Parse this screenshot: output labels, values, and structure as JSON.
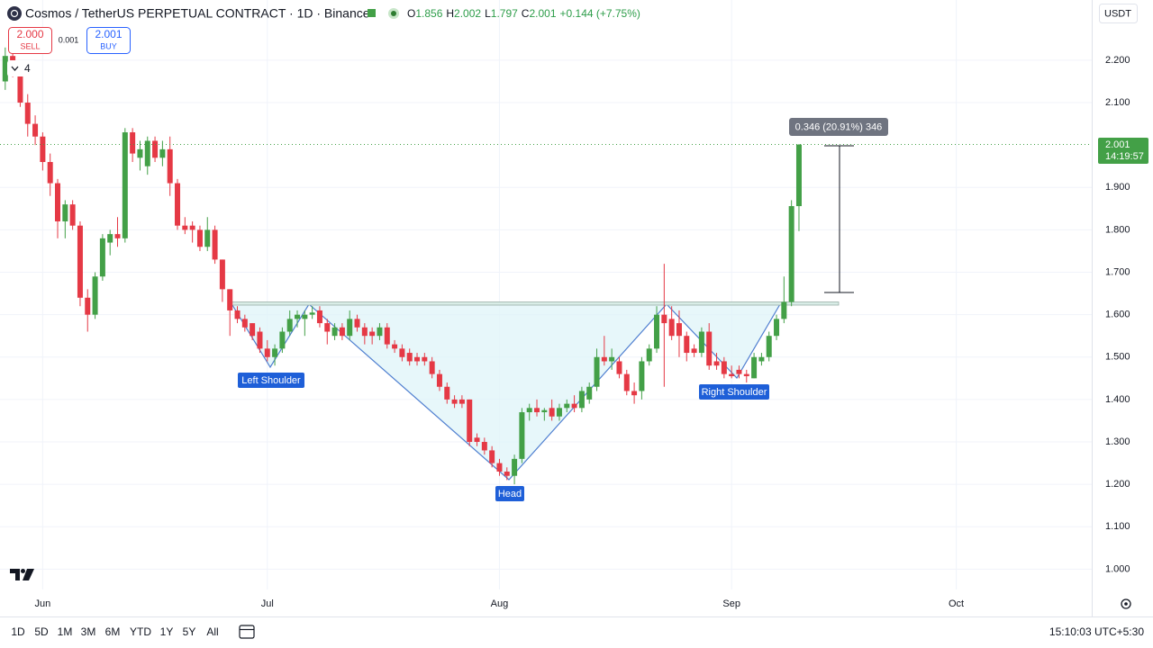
{
  "header": {
    "symbol": "Cosmos / TetherUS PERPETUAL CONTRACT · 1D · Binance",
    "open_label": "O",
    "high_label": "H",
    "low_label": "L",
    "close_label": "C",
    "change": "+0.144 (+7.75%)"
  },
  "order": {
    "sell_price": "2.000",
    "sell_label": "SELL",
    "spread": "0.001",
    "buy_price": "2.001",
    "buy_label": "BUY"
  },
  "indicators_count": "4",
  "currency": "USDT",
  "chart_data": {
    "type": "candlestick",
    "up_color": "#43a047",
    "down_color": "#e53945",
    "grid": true,
    "open": [
      2.15,
      2.21,
      2.17,
      2.1,
      2.05,
      2.02,
      1.96,
      1.91,
      1.82,
      1.86,
      1.81,
      1.64,
      1.6,
      1.69,
      1.77,
      1.79,
      1.78,
      2.03,
      1.97,
      1.95,
      2.01,
      1.97,
      1.99,
      1.91,
      1.81,
      1.81,
      1.8,
      1.76,
      1.8,
      1.73,
      1.66,
      1.61,
      1.59,
      1.58,
      1.56,
      1.52,
      1.5,
      1.52,
      1.56,
      1.59,
      1.59,
      1.6,
      1.61,
      1.58,
      1.55,
      1.57,
      1.55,
      1.59,
      1.57,
      1.56,
      1.55,
      1.57,
      1.53,
      1.52,
      1.51,
      1.5,
      1.5,
      1.49,
      1.46,
      1.43,
      1.4,
      1.4,
      1.4,
      1.31,
      1.3,
      1.28,
      1.25,
      1.23,
      1.22,
      1.26,
      1.37,
      1.38,
      1.37,
      1.38,
      1.36,
      1.38,
      1.39,
      1.38,
      1.4,
      1.43,
      1.5,
      1.49,
      1.49,
      1.46,
      1.42,
      1.42,
      1.49,
      1.52,
      1.6,
      1.59,
      1.58,
      1.55,
      1.52,
      1.51,
      1.56,
      1.49,
      1.49,
      1.46,
      1.47,
      1.46,
      1.45,
      1.49,
      1.5,
      1.55,
      1.59,
      1.63,
      1.856
    ],
    "high": [
      2.23,
      2.22,
      2.18,
      2.12,
      2.07,
      2.03,
      1.98,
      1.92,
      1.87,
      1.87,
      1.82,
      1.66,
      1.7,
      1.79,
      1.8,
      1.83,
      2.04,
      2.04,
      2.01,
      2.02,
      2.02,
      2.01,
      2.02,
      1.92,
      1.83,
      1.82,
      1.81,
      1.83,
      1.81,
      1.73,
      1.66,
      1.62,
      1.6,
      1.58,
      1.57,
      1.54,
      1.53,
      1.57,
      1.61,
      1.61,
      1.61,
      1.62,
      1.62,
      1.59,
      1.58,
      1.58,
      1.61,
      1.6,
      1.58,
      1.57,
      1.58,
      1.58,
      1.54,
      1.53,
      1.52,
      1.51,
      1.51,
      1.5,
      1.47,
      1.44,
      1.41,
      1.41,
      1.4,
      1.32,
      1.31,
      1.29,
      1.26,
      1.24,
      1.27,
      1.38,
      1.39,
      1.4,
      1.38,
      1.4,
      1.39,
      1.4,
      1.41,
      1.43,
      1.44,
      1.52,
      1.55,
      1.52,
      1.5,
      1.47,
      1.44,
      1.5,
      1.53,
      1.62,
      1.72,
      1.62,
      1.61,
      1.56,
      1.53,
      1.57,
      1.58,
      1.51,
      1.5,
      1.48,
      1.48,
      1.47,
      1.51,
      1.51,
      1.56,
      1.6,
      1.69,
      1.87,
      2.002
    ],
    "low": [
      2.13,
      2.16,
      2.09,
      2.02,
      2.0,
      1.94,
      1.88,
      1.78,
      1.78,
      1.8,
      1.62,
      1.56,
      1.59,
      1.68,
      1.74,
      1.76,
      1.77,
      1.96,
      1.94,
      1.93,
      1.96,
      1.95,
      1.88,
      1.8,
      1.79,
      1.77,
      1.75,
      1.75,
      1.72,
      1.63,
      1.55,
      1.58,
      1.56,
      1.54,
      1.51,
      1.49,
      1.48,
      1.51,
      1.55,
      1.57,
      1.55,
      1.59,
      1.57,
      1.53,
      1.54,
      1.54,
      1.54,
      1.56,
      1.53,
      1.53,
      1.54,
      1.52,
      1.51,
      1.49,
      1.48,
      1.48,
      1.48,
      1.45,
      1.42,
      1.39,
      1.38,
      1.38,
      1.29,
      1.29,
      1.27,
      1.24,
      1.22,
      1.21,
      1.2,
      1.25,
      1.35,
      1.36,
      1.35,
      1.35,
      1.35,
      1.37,
      1.37,
      1.37,
      1.39,
      1.42,
      1.48,
      1.47,
      1.45,
      1.41,
      1.39,
      1.4,
      1.48,
      1.51,
      1.43,
      1.54,
      1.5,
      1.49,
      1.5,
      1.5,
      1.47,
      1.47,
      1.45,
      1.45,
      1.45,
      1.44,
      1.45,
      1.48,
      1.49,
      1.54,
      1.58,
      1.62,
      1.797
    ],
    "close": [
      2.21,
      2.17,
      2.1,
      2.05,
      2.02,
      1.96,
      1.91,
      1.82,
      1.86,
      1.81,
      1.64,
      1.6,
      1.69,
      1.78,
      1.79,
      1.78,
      2.03,
      1.98,
      1.99,
      2.01,
      1.97,
      1.99,
      1.91,
      1.81,
      1.8,
      1.8,
      1.76,
      1.8,
      1.73,
      1.66,
      1.61,
      1.59,
      1.57,
      1.55,
      1.52,
      1.5,
      1.52,
      1.56,
      1.59,
      1.6,
      1.6,
      1.605,
      1.58,
      1.56,
      1.57,
      1.55,
      1.59,
      1.57,
      1.55,
      1.55,
      1.57,
      1.53,
      1.52,
      1.5,
      1.49,
      1.49,
      1.49,
      1.46,
      1.43,
      1.4,
      1.39,
      1.39,
      1.3,
      1.3,
      1.28,
      1.25,
      1.23,
      1.22,
      1.26,
      1.37,
      1.38,
      1.37,
      1.375,
      1.36,
      1.38,
      1.39,
      1.38,
      1.42,
      1.43,
      1.5,
      1.49,
      1.5,
      1.46,
      1.42,
      1.41,
      1.49,
      1.52,
      1.6,
      1.58,
      1.55,
      1.55,
      1.51,
      1.51,
      1.56,
      1.48,
      1.48,
      1.46,
      1.455,
      1.46,
      1.455,
      1.5,
      1.5,
      1.55,
      1.59,
      1.63,
      1.856,
      2.001
    ],
    "ylim": [
      0.952,
      2.342
    ],
    "yticks": [
      {
        "value": 1.0,
        "label": "1.000"
      },
      {
        "value": 1.1,
        "label": "1.100"
      },
      {
        "value": 1.2,
        "label": "1.200"
      },
      {
        "value": 1.3,
        "label": "1.300"
      },
      {
        "value": 1.4,
        "label": "1.400"
      },
      {
        "value": 1.5,
        "label": "1.500"
      },
      {
        "value": 1.6,
        "label": "1.600"
      },
      {
        "value": 1.7,
        "label": "1.700"
      },
      {
        "value": 1.8,
        "label": "1.800"
      },
      {
        "value": 1.9,
        "label": "1.900"
      },
      {
        "value": 2.1,
        "label": "2.100"
      },
      {
        "value": 2.2,
        "label": "2.200"
      }
    ],
    "xlim": [
      -0.7,
      145.1
    ],
    "xticks": [
      {
        "value": 5,
        "label": "Jun"
      },
      {
        "value": 35,
        "label": "Jul"
      },
      {
        "value": 66,
        "label": "Aug"
      },
      {
        "value": 97,
        "label": "Sep"
      },
      {
        "value": 127,
        "label": "Oct"
      }
    ],
    "annotations": {
      "left_shoulder": "Left Shoulder",
      "head": "Head",
      "right_shoulder": "Right Shoulder",
      "measure": "0.346 (20.91%) 346"
    },
    "countdown": "14:19:57"
  },
  "toolbar": {
    "ranges": [
      "1D",
      "5D",
      "1M",
      "3M",
      "6M",
      "YTD",
      "1Y",
      "5Y",
      "All"
    ],
    "clock": "15:10:03 UTC+5:30"
  }
}
